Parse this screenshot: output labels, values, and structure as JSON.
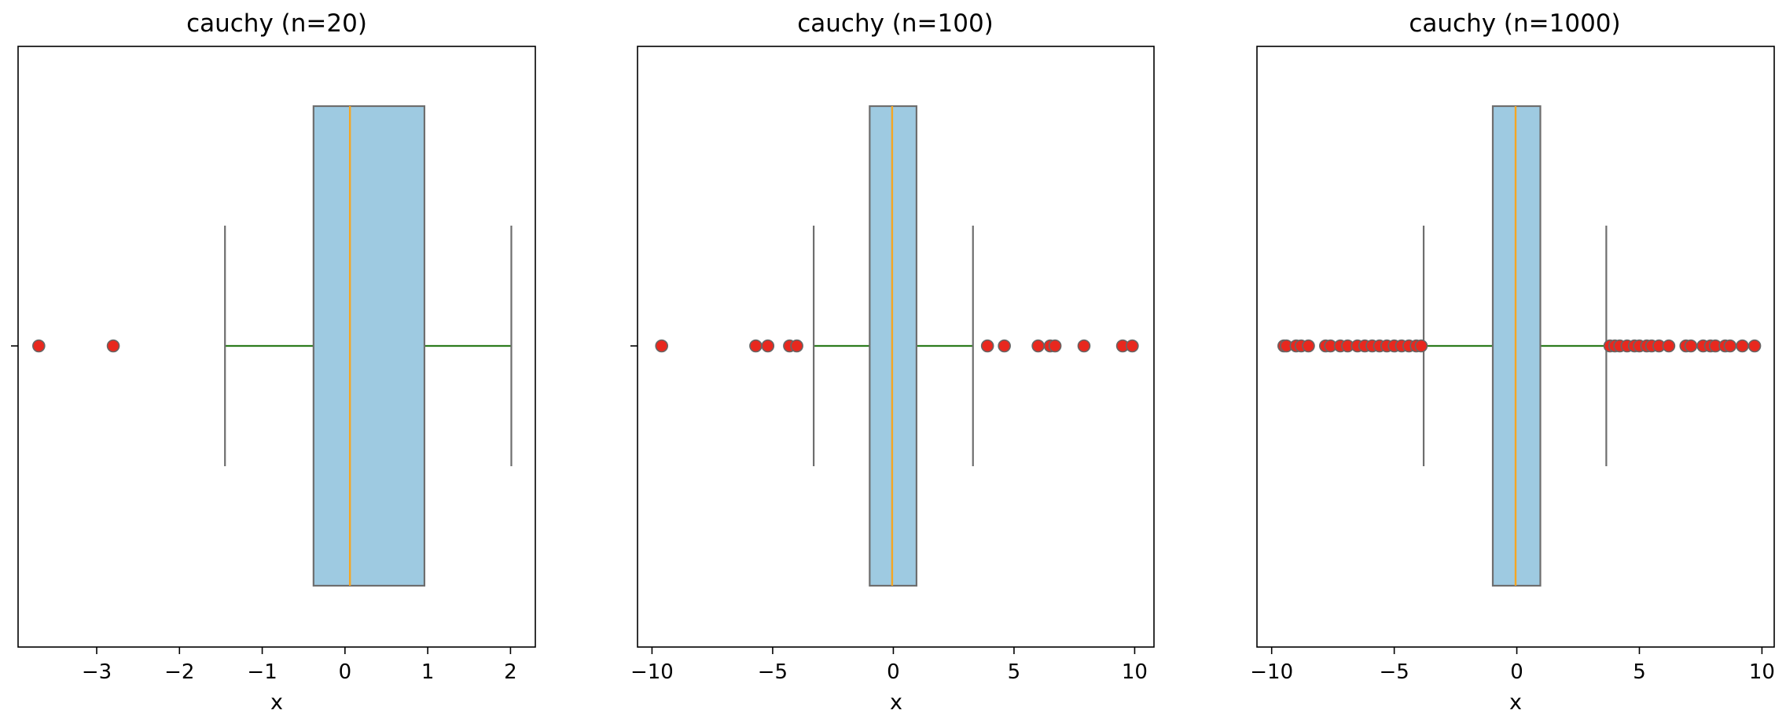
{
  "chart_data": [
    {
      "type": "boxplot",
      "title": "cauchy (n=20)",
      "xlabel": "x",
      "ylabel": "",
      "xlim": [
        -3.95,
        2.3
      ],
      "xticks": [
        -3,
        -2,
        -1,
        0,
        1,
        2
      ],
      "xtick_labels": [
        "−3",
        "−2",
        "−1",
        "0",
        "1",
        "2"
      ],
      "show_y_tick": true,
      "box": {
        "q1": -0.38,
        "median": 0.06,
        "q3": 0.96,
        "whisker_low": -1.45,
        "whisker_high": 2.01
      },
      "outliers": [
        -3.7,
        -2.8
      ]
    },
    {
      "type": "boxplot",
      "title": "cauchy (n=100)",
      "xlabel": "x",
      "ylabel": "",
      "xlim": [
        -10.6,
        10.8
      ],
      "xticks": [
        -10,
        -5,
        0,
        5,
        10
      ],
      "xtick_labels": [
        "−10",
        "−5",
        "0",
        "5",
        "10"
      ],
      "show_y_tick": true,
      "box": {
        "q1": -0.98,
        "median": -0.05,
        "q3": 0.96,
        "whisker_low": -3.3,
        "whisker_high": 3.3
      },
      "outliers": [
        -9.6,
        -5.7,
        -5.2,
        -4.3,
        -4.0,
        3.9,
        4.6,
        6.0,
        6.5,
        6.7,
        7.9,
        9.5,
        9.9
      ]
    },
    {
      "type": "boxplot",
      "title": "cauchy (n=1000)",
      "xlabel": "x",
      "ylabel": "",
      "xlim": [
        -10.6,
        10.5
      ],
      "xticks": [
        -10,
        -5,
        0,
        5,
        10
      ],
      "xtick_labels": [
        "−10",
        "−5",
        "0",
        "5",
        "10"
      ],
      "show_y_tick": false,
      "box": {
        "q1": -0.98,
        "median": -0.05,
        "q3": 0.96,
        "whisker_low": -3.8,
        "whisker_high": 3.65
      },
      "outliers": [
        -9.5,
        -9.4,
        -9.0,
        -8.8,
        -8.5,
        -7.8,
        -7.6,
        -7.2,
        -6.9,
        -6.5,
        -6.2,
        -5.9,
        -5.6,
        -5.3,
        -5.0,
        -4.7,
        -4.4,
        -4.1,
        -3.9,
        3.8,
        4.0,
        4.2,
        4.5,
        4.8,
        5.0,
        5.3,
        5.5,
        5.8,
        6.2,
        6.9,
        7.1,
        7.6,
        7.9,
        8.1,
        8.5,
        8.7,
        9.2,
        9.7
      ]
    }
  ],
  "colors": {
    "box_fill": "#9ecae1",
    "box_edge": "#6e6e6e",
    "median": "#f5a623",
    "whisker_line": "#2e7d1f",
    "cap_line": "#6e6e6e",
    "outlier_fill": "#e8281e",
    "outlier_edge": "#666666",
    "axes": "#000000"
  }
}
